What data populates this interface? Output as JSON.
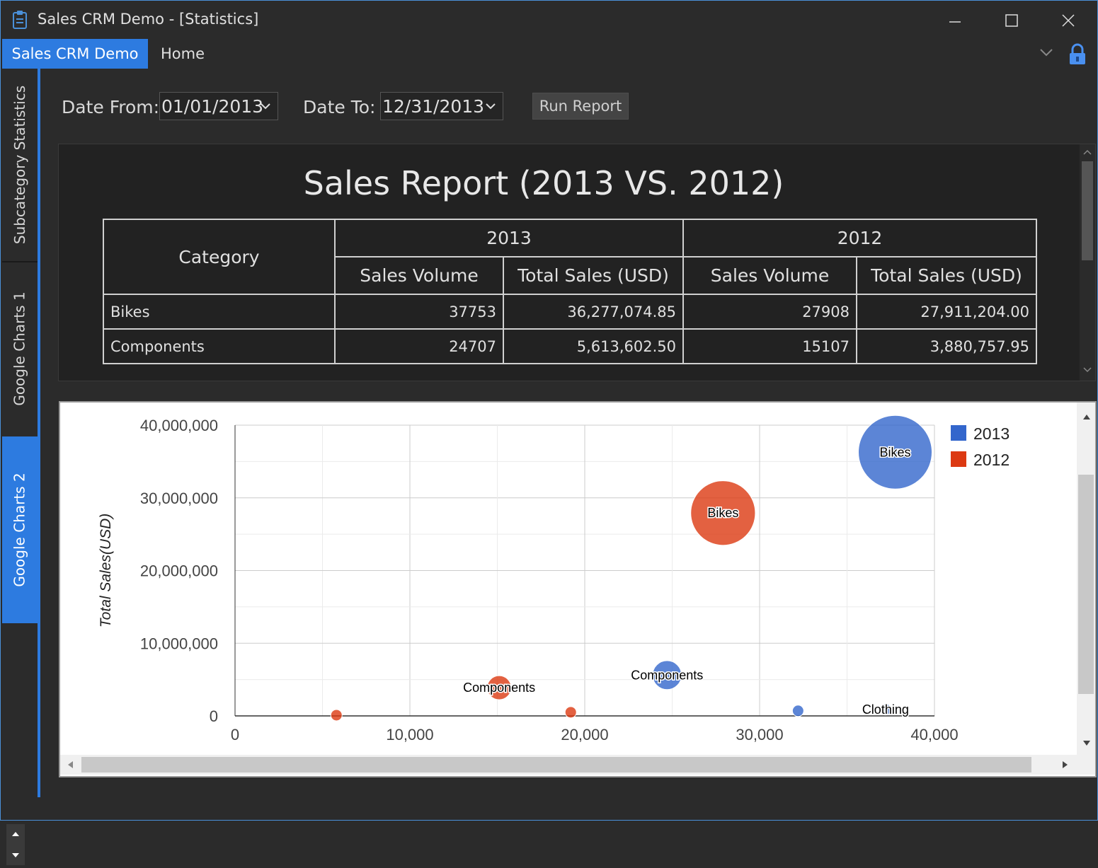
{
  "window": {
    "title": "Sales CRM Demo - [Statistics]",
    "icon": "clipboard-icon",
    "controls": [
      "minimize-icon",
      "maximize-icon",
      "close-icon"
    ]
  },
  "menu": {
    "active_tab": "Sales CRM Demo",
    "home": "Home"
  },
  "sidebar": {
    "tabs": [
      {
        "label": "Subcategory Statistics",
        "active": false
      },
      {
        "label": "Google Charts 1",
        "active": false
      },
      {
        "label": "Google Charts 2",
        "active": true
      }
    ]
  },
  "filters": {
    "date_from_label": "Date From:",
    "date_from_value": "01/01/2013",
    "date_to_label": "Date To:",
    "date_to_value": "12/31/2013",
    "run_button": "Run Report"
  },
  "report": {
    "title": "Sales Report (2013 VS. 2012)",
    "header": {
      "category": "Category",
      "year_a": "2013",
      "year_b": "2012",
      "sales_volume": "Sales Volume",
      "total_sales": "Total Sales (USD)"
    },
    "rows": [
      {
        "category": "Bikes",
        "vol_2013": "37753",
        "total_2013": "36,277,074.85",
        "vol_2012": "27908",
        "total_2012": "27,911,204.00"
      },
      {
        "category": "Components",
        "vol_2013": "24707",
        "total_2013": "5,613,602.50",
        "vol_2012": "15107",
        "total_2012": "3,880,757.95"
      }
    ]
  },
  "chart_data": {
    "type": "scatter",
    "title": "",
    "xlabel": "",
    "ylabel": "Total Sales(USD)",
    "xlim": [
      0,
      40000
    ],
    "ylim": [
      0,
      40000000
    ],
    "x_ticks": [
      "0",
      "10,000",
      "20,000",
      "30,000",
      "40,000"
    ],
    "y_ticks": [
      "0",
      "10,000,000",
      "20,000,000",
      "30,000,000",
      "40,000,000"
    ],
    "grid": true,
    "legend": "right",
    "series": [
      {
        "name": "2013",
        "color": "#3366cc",
        "points": [
          {
            "label": "Bikes",
            "x": 37753,
            "y": 36277074.85,
            "size": 36277074.85
          },
          {
            "label": "Components",
            "x": 24707,
            "y": 5613602.5,
            "size": 5613602.5
          },
          {
            "label": "",
            "x": 32200,
            "y": 700000,
            "size": 700000
          },
          {
            "label": "Clothing",
            "x": 37200,
            "y": 900000,
            "size": 300000
          }
        ]
      },
      {
        "name": "2012",
        "color": "#dc3912",
        "points": [
          {
            "label": "Bikes",
            "x": 27908,
            "y": 27911204.0,
            "size": 27911204.0
          },
          {
            "label": "Components",
            "x": 15107,
            "y": 3880757.95,
            "size": 3880757.95
          },
          {
            "label": "",
            "x": 19200,
            "y": 500000,
            "size": 500000
          },
          {
            "label": "",
            "x": 5800,
            "y": 100000,
            "size": 150000
          }
        ]
      }
    ]
  }
}
